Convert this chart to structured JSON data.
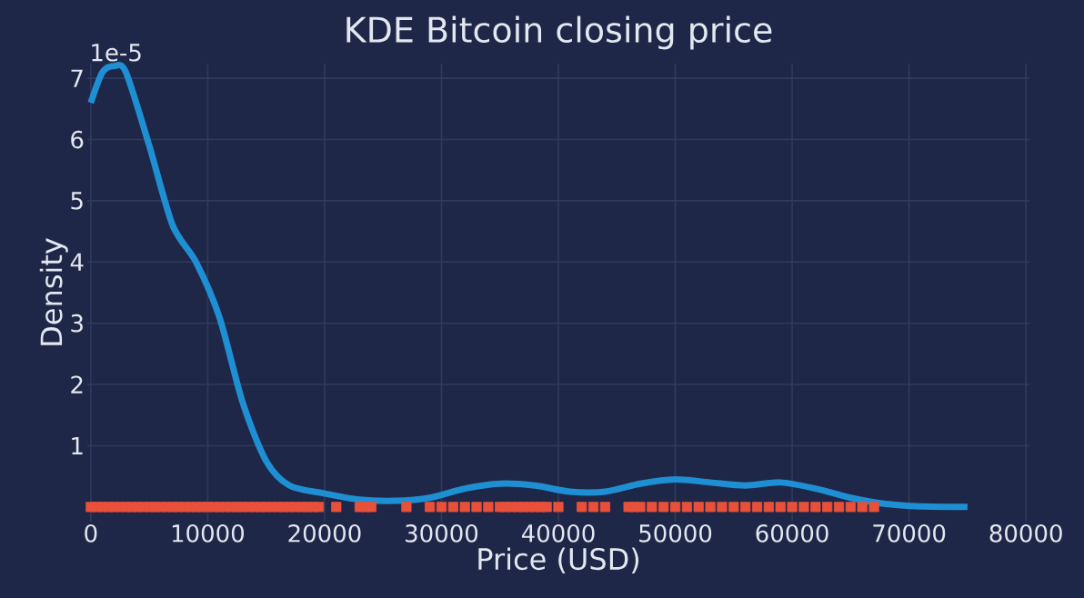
{
  "chart_data": {
    "type": "line",
    "title": "KDE Bitcoin closing price",
    "xlabel": "Price (USD)",
    "ylabel": "Density",
    "annotations": [
      "1e-5"
    ],
    "xlim": [
      -300,
      80300
    ],
    "ylim": [
      -0.24,
      7.24
    ],
    "xticks": [
      0,
      10000,
      20000,
      30000,
      40000,
      50000,
      60000,
      70000,
      80000
    ],
    "yticks": [
      1,
      2,
      3,
      4,
      5,
      6,
      7
    ],
    "grid": true,
    "series": [
      {
        "type": "line",
        "color": "#1f8fd4",
        "x": [
          0,
          1000,
          2000,
          3000,
          5000,
          7000,
          9000,
          11000,
          13000,
          15000,
          17000,
          20000,
          23000,
          26000,
          29000,
          32000,
          35000,
          38000,
          41000,
          44000,
          47000,
          50000,
          53000,
          56000,
          59000,
          62000,
          65000,
          68000,
          71000,
          75000
        ],
        "values": [
          6.6,
          7.1,
          7.2,
          7.1,
          5.9,
          4.6,
          4.0,
          3.1,
          1.7,
          0.75,
          0.35,
          0.22,
          0.12,
          0.1,
          0.15,
          0.3,
          0.38,
          0.35,
          0.25,
          0.25,
          0.38,
          0.45,
          0.4,
          0.35,
          0.4,
          0.3,
          0.15,
          0.05,
          0.01,
          0
        ]
      },
      {
        "type": "scatter",
        "marker": "square",
        "color": "#e8503a",
        "x": [
          0,
          500,
          1000,
          1500,
          2000,
          2500,
          3000,
          3500,
          4000,
          4500,
          5000,
          5500,
          6000,
          6500,
          7000,
          7500,
          8000,
          8500,
          9000,
          9500,
          10000,
          10500,
          11000,
          11500,
          12000,
          12500,
          13000,
          13500,
          14000,
          14500,
          15000,
          15500,
          16000,
          16500,
          17000,
          17500,
          18000,
          18500,
          19000,
          19500,
          21000,
          23000,
          23500,
          24000,
          27000,
          29000,
          30000,
          31000,
          32000,
          33000,
          34000,
          35000,
          35500,
          36000,
          36500,
          37000,
          37500,
          38000,
          38500,
          39000,
          40000,
          42000,
          43000,
          44000,
          46000,
          46500,
          47000,
          48000,
          49000,
          50000,
          51000,
          52000,
          53000,
          54000,
          55000,
          56000,
          57000,
          58000,
          59000,
          60000,
          61000,
          62000,
          63000,
          64000,
          65000,
          66000,
          67000
        ],
        "values": [
          0,
          0,
          0,
          0,
          0,
          0,
          0,
          0,
          0,
          0,
          0,
          0,
          0,
          0,
          0,
          0,
          0,
          0,
          0,
          0,
          0,
          0,
          0,
          0,
          0,
          0,
          0,
          0,
          0,
          0,
          0,
          0,
          0,
          0,
          0,
          0,
          0,
          0,
          0,
          0,
          0,
          0,
          0,
          0,
          0,
          0,
          0,
          0,
          0,
          0,
          0,
          0,
          0,
          0,
          0,
          0,
          0,
          0,
          0,
          0,
          0,
          0,
          0,
          0,
          0,
          0,
          0,
          0,
          0,
          0,
          0,
          0,
          0,
          0,
          0,
          0,
          0,
          0,
          0,
          0,
          0,
          0,
          0,
          0,
          0,
          0,
          0
        ]
      }
    ]
  }
}
